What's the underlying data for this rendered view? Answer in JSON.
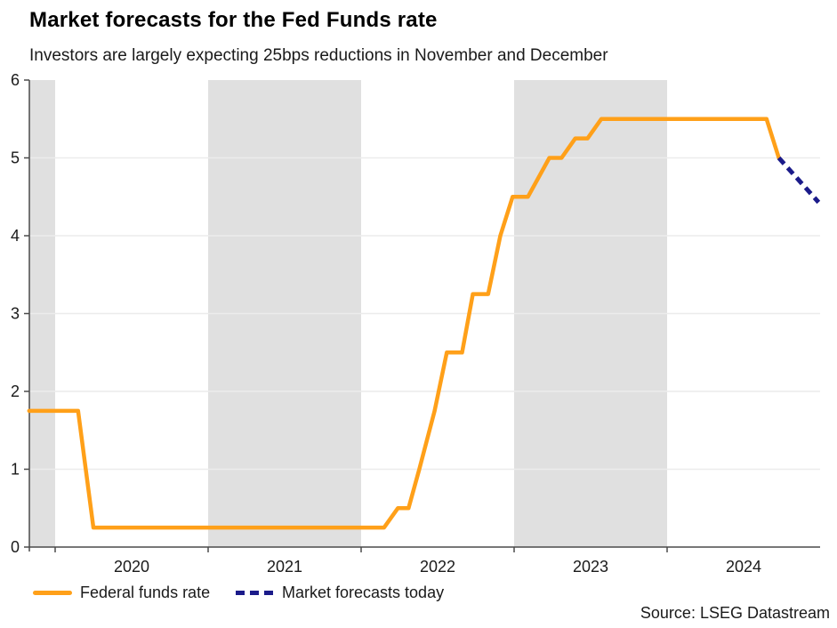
{
  "header": {
    "title": "Market forecasts for the Fed Funds rate",
    "subtitle": "Investors are largely expecting 25bps reductions in November and December"
  },
  "legend": {
    "position": "bottom",
    "items": [
      {
        "label": "Federal funds rate",
        "color": "#FFA019",
        "style": "solid"
      },
      {
        "label": "Market forecasts today",
        "color": "#1B1B8A",
        "style": "dashed"
      }
    ]
  },
  "footer": {
    "source": "Source: LSEG Datastream"
  },
  "colors": {
    "orange_line": "#FFA019",
    "navy_line": "#1B1B8A",
    "year_band": "#E0E0E0",
    "gridline": "#ECECEC",
    "axis": "#4a4a4a",
    "tick_text": "#1a1a1a"
  },
  "chart_data": {
    "type": "line",
    "title": "Market forecasts for the Fed Funds rate",
    "xlabel": "",
    "ylabel": "",
    "grid": "horizontal",
    "x_axis": {
      "range": [
        2019.83,
        2025.0
      ],
      "ticks": [
        2020,
        2021,
        2022,
        2023,
        2024
      ],
      "labels": [
        {
          "year": 2020,
          "text": "2020"
        },
        {
          "year": 2021,
          "text": "2021"
        },
        {
          "year": 2022,
          "text": "2022"
        },
        {
          "year": 2023,
          "text": "2023"
        },
        {
          "year": 2024,
          "text": "2024"
        }
      ]
    },
    "y_axis": {
      "range": [
        0,
        6
      ],
      "ticks": [
        0,
        1,
        2,
        3,
        4,
        5,
        6
      ],
      "gridlines": [
        1,
        2,
        3,
        4,
        5
      ]
    },
    "bands": [
      [
        2019.83,
        2020.0
      ],
      [
        2021.0,
        2022.0
      ],
      [
        2023.0,
        2024.0
      ]
    ],
    "series": [
      {
        "name": "Federal funds rate",
        "style": "solid",
        "color": "#FFA019",
        "width": 4.5,
        "points": [
          [
            2019.83,
            1.75
          ],
          [
            2020.15,
            1.75
          ],
          [
            2020.25,
            0.25
          ],
          [
            2022.15,
            0.25
          ],
          [
            2022.24,
            0.5
          ],
          [
            2022.31,
            0.5
          ],
          [
            2022.38,
            1.0
          ],
          [
            2022.48,
            1.75
          ],
          [
            2022.56,
            2.5
          ],
          [
            2022.66,
            2.5
          ],
          [
            2022.73,
            3.25
          ],
          [
            2022.83,
            3.25
          ],
          [
            2022.91,
            4.0
          ],
          [
            2022.99,
            4.5
          ],
          [
            2023.09,
            4.5
          ],
          [
            2023.23,
            5.0
          ],
          [
            2023.31,
            5.0
          ],
          [
            2023.4,
            5.25
          ],
          [
            2023.48,
            5.25
          ],
          [
            2023.57,
            5.5
          ],
          [
            2024.65,
            5.5
          ],
          [
            2024.73,
            5.0
          ]
        ]
      },
      {
        "name": "Market forecasts today",
        "style": "dashed",
        "color": "#1B1B8A",
        "width": 5,
        "points": [
          [
            2024.73,
            5.0
          ],
          [
            2024.99,
            4.43
          ]
        ]
      }
    ]
  }
}
